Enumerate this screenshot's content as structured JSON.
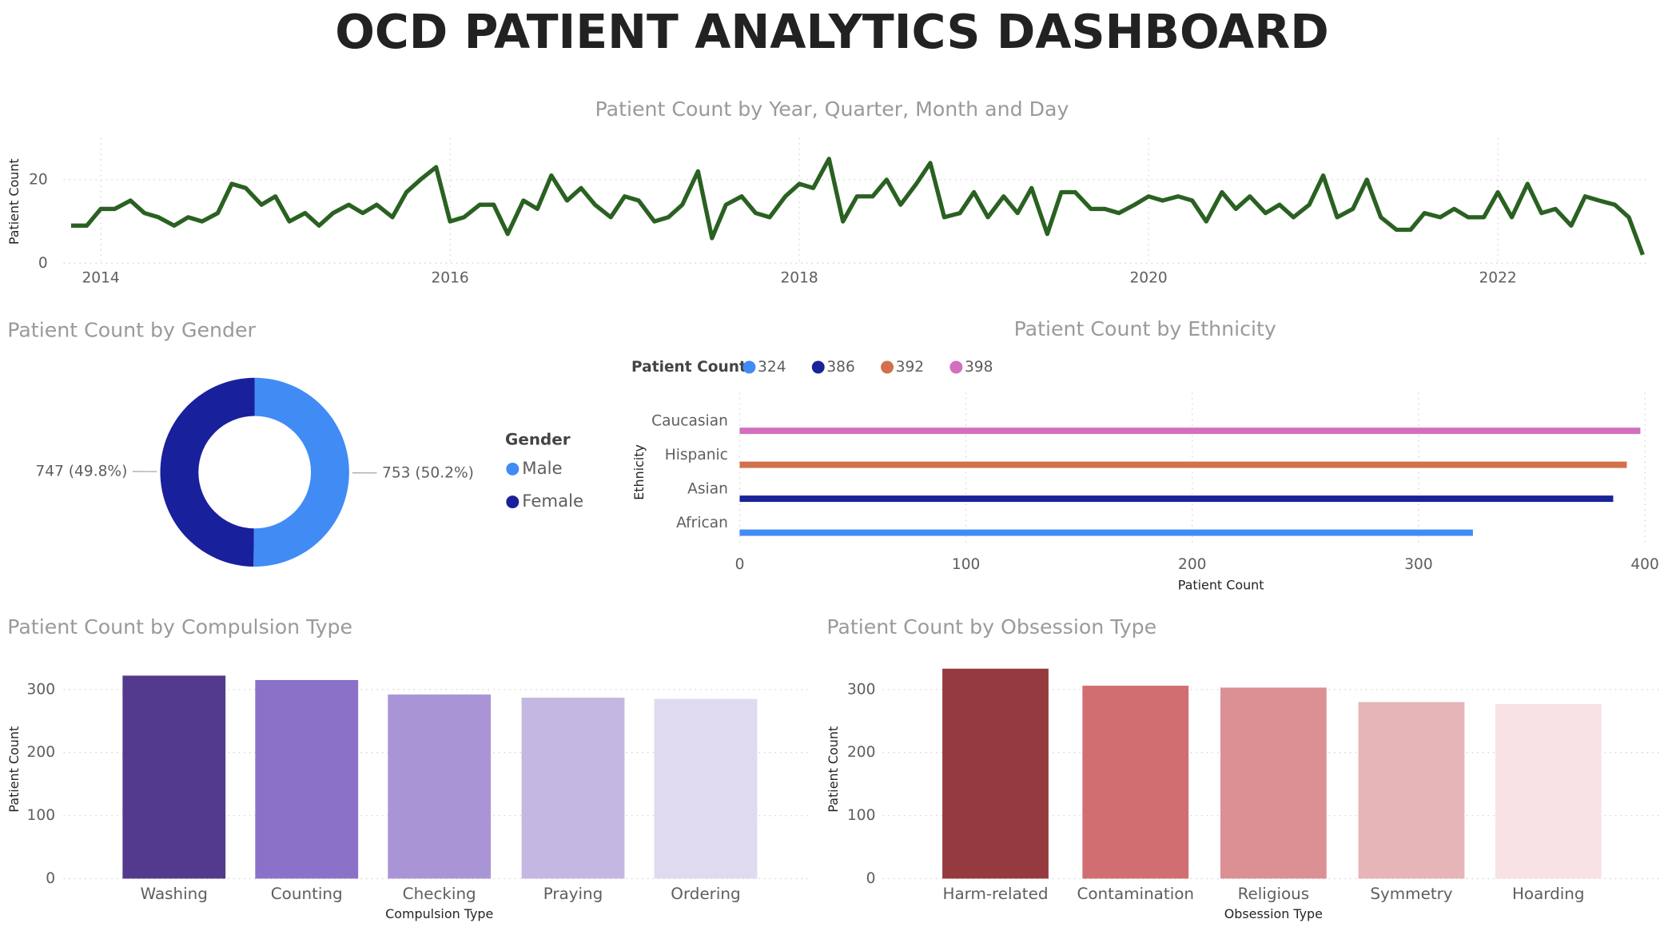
{
  "title": "OCD PATIENT ANALYTICS DASHBOARD",
  "chart_data": [
    {
      "type": "line",
      "title": "Patient Count by Year, Quarter, Month and Day",
      "ylabel": "Patient Count",
      "color": "#2a6122",
      "grid": true,
      "xlim": [
        2013.83,
        2022.83
      ],
      "xticks": [
        2014,
        2016,
        2018,
        2020,
        2022
      ],
      "ylim": [
        0,
        30
      ],
      "yticks": [
        0,
        20
      ],
      "x": [
        2013.83,
        2013.92,
        2014,
        2014.08,
        2014.17,
        2014.25,
        2014.33,
        2014.42,
        2014.5,
        2014.58,
        2014.67,
        2014.75,
        2014.83,
        2014.92,
        2015,
        2015.08,
        2015.17,
        2015.25,
        2015.33,
        2015.42,
        2015.5,
        2015.58,
        2015.67,
        2015.75,
        2015.83,
        2015.92,
        2016,
        2016.08,
        2016.17,
        2016.25,
        2016.33,
        2016.42,
        2016.5,
        2016.58,
        2016.67,
        2016.75,
        2016.83,
        2016.92,
        2017,
        2017.08,
        2017.17,
        2017.25,
        2017.33,
        2017.42,
        2017.5,
        2017.58,
        2017.67,
        2017.75,
        2017.83,
        2017.92,
        2018,
        2018.08,
        2018.17,
        2018.25,
        2018.33,
        2018.42,
        2018.5,
        2018.58,
        2018.67,
        2018.75,
        2018.83,
        2018.92,
        2019,
        2019.08,
        2019.17,
        2019.25,
        2019.33,
        2019.42,
        2019.5,
        2019.58,
        2019.67,
        2019.75,
        2019.83,
        2019.92,
        2020,
        2020.08,
        2020.17,
        2020.25,
        2020.33,
        2020.42,
        2020.5,
        2020.58,
        2020.67,
        2020.75,
        2020.83,
        2020.92,
        2021,
        2021.08,
        2021.17,
        2021.25,
        2021.33,
        2021.42,
        2021.5,
        2021.58,
        2021.67,
        2021.75,
        2021.83,
        2021.92,
        2022,
        2022.08,
        2022.17,
        2022.25,
        2022.33,
        2022.42,
        2022.5,
        2022.58,
        2022.67,
        2022.75,
        2022.83
      ],
      "values": [
        9,
        9,
        13,
        13,
        15,
        12,
        11,
        9,
        11,
        10,
        12,
        19,
        18,
        14,
        16,
        10,
        12,
        9,
        12,
        14,
        12,
        14,
        11,
        17,
        20,
        23,
        10,
        11,
        14,
        14,
        7,
        15,
        13,
        21,
        15,
        18,
        14,
        11,
        16,
        15,
        10,
        11,
        14,
        22,
        6,
        14,
        16,
        12,
        11,
        16,
        19,
        18,
        25,
        10,
        16,
        16,
        20,
        14,
        19,
        24,
        11,
        12,
        17,
        11,
        16,
        12,
        18,
        7,
        17,
        17,
        13,
        13,
        12,
        14,
        16,
        15,
        16,
        15,
        10,
        17,
        13,
        16,
        12,
        14,
        11,
        14,
        21,
        11,
        13,
        20,
        11,
        8,
        8,
        12,
        11,
        13,
        11,
        11,
        17,
        11,
        19,
        12,
        13,
        9,
        16,
        15,
        14,
        11,
        2
      ]
    },
    {
      "type": "donut",
      "title": "Patient Count by Gender",
      "legend_title": "Gender",
      "categories": [
        "Male",
        "Female"
      ],
      "values": [
        753,
        747
      ],
      "value_labels": [
        "753 (50.2%)",
        "747 (49.8%)"
      ],
      "colors": [
        "#418bf5",
        "#19209c"
      ]
    },
    {
      "type": "hbar",
      "title": "Patient Count by Ethnicity",
      "legend_title": "Patient Count",
      "xlabel": "Patient Count",
      "ylabel": "Ethnicity",
      "grid": true,
      "categories": [
        "African",
        "Asian",
        "Hispanic",
        "Caucasian"
      ],
      "values": [
        324,
        386,
        392,
        398
      ],
      "colors": [
        "#418bf5",
        "#1a2496",
        "#d2714a",
        "#d36fbe"
      ],
      "xlim": [
        0,
        400
      ],
      "xticks": [
        0,
        100,
        200,
        300,
        400
      ]
    },
    {
      "type": "bar",
      "title": "Patient Count by Compulsion Type",
      "xlabel": "Compulsion Type",
      "ylabel": "Patient Count",
      "grid": true,
      "categories": [
        "Washing",
        "Counting",
        "Checking",
        "Praying",
        "Ordering"
      ],
      "values": [
        322,
        315,
        292,
        287,
        285
      ],
      "colors": [
        "#533a8c",
        "#8b72c8",
        "#a995d6",
        "#c4b8e2",
        "#dfdaf0"
      ],
      "ylim": [
        0,
        340
      ],
      "yticks": [
        0,
        100,
        200,
        300
      ]
    },
    {
      "type": "bar",
      "title": "Patient Count by Obsession Type",
      "xlabel": "Obsession Type",
      "ylabel": "Patient Count",
      "grid": true,
      "categories": [
        "Harm-related",
        "Contamination",
        "Religious",
        "Symmetry",
        "Hoarding"
      ],
      "values": [
        333,
        306,
        303,
        280,
        277
      ],
      "colors": [
        "#953a3e",
        "#d06e71",
        "#db9194",
        "#e6b5b7",
        "#f8e2e3"
      ],
      "ylim": [
        0,
        340
      ],
      "yticks": [
        0,
        100,
        200,
        300
      ]
    }
  ]
}
